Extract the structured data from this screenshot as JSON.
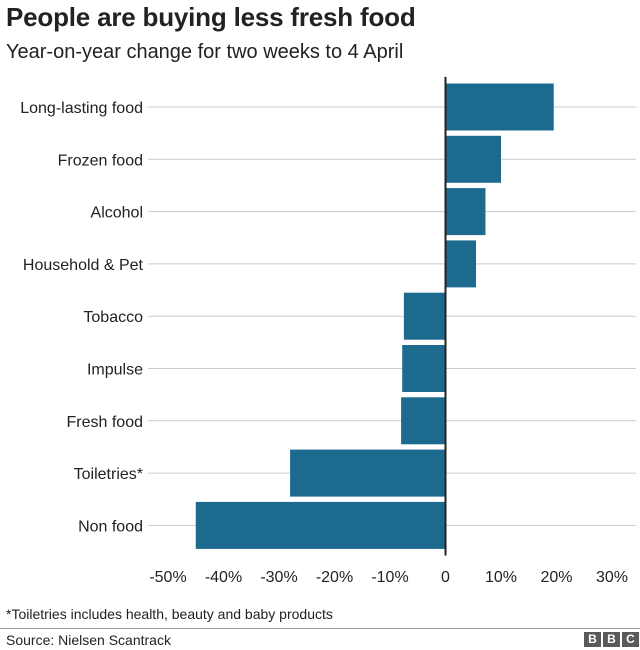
{
  "title": "People are buying less fresh food",
  "subtitle": "Year-on-year change for two weeks to 4 April",
  "footnote": "*Toiletries includes health, beauty and baby products",
  "source": "Source: Nielsen Scantrack",
  "logo": [
    "B",
    "B",
    "C"
  ],
  "colors": {
    "bar": "#1d6a8f",
    "grid": "#cccccc",
    "zero_line": "#222222",
    "logo": "#5a5a5a"
  },
  "chart_data": {
    "type": "bar",
    "orientation": "horizontal",
    "categories": [
      "Long-lasting food",
      "Frozen food",
      "Alcohol",
      "Household & Pet",
      "Tobacco",
      "Impulse",
      "Fresh food",
      "Toiletries*",
      "Non food"
    ],
    "values": [
      19.5,
      10,
      7.2,
      5.5,
      -7.5,
      -7.8,
      -8,
      -28,
      -45
    ],
    "unit": "%",
    "xlim": [
      -50,
      30
    ],
    "xticks": [
      -50,
      -40,
      -30,
      -20,
      -10,
      0,
      10,
      20,
      30
    ],
    "xtick_labels": [
      "-50%",
      "-40%",
      "-30%",
      "-20%",
      "-10%",
      "0",
      "10%",
      "20%",
      "30%"
    ],
    "grid": true,
    "xlabel": "",
    "ylabel": ""
  }
}
